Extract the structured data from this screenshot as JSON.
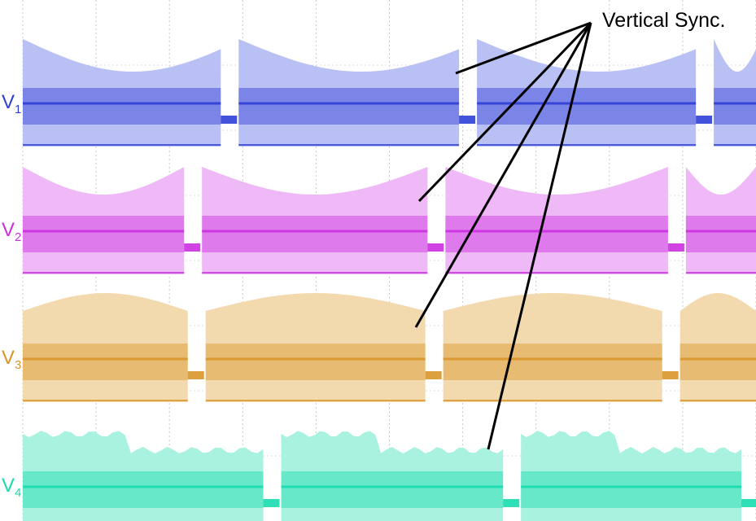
{
  "chart_data": {
    "type": "line",
    "title": "",
    "xlabel": "",
    "ylabel": "",
    "grid": true,
    "annotation": "Vertical Sync.",
    "series": [
      {
        "name": "V1",
        "letter": "V",
        "sub": "1",
        "color": "#2f3fd6",
        "light": "#b8c0f4",
        "sync": [
          0.27,
          0.595,
          0.918
        ]
      },
      {
        "name": "V2",
        "letter": "V",
        "sub": "2",
        "color": "#cc2fe0",
        "light": "#efb8f6",
        "sync": [
          0.22,
          0.552,
          0.88
        ]
      },
      {
        "name": "V3",
        "letter": "V",
        "sub": "3",
        "color": "#d9962a",
        "light": "#f3d9ae",
        "sync": [
          0.225,
          0.549,
          0.872
        ]
      },
      {
        "name": "V4",
        "letter": "V",
        "sub": "4",
        "color": "#18dcb0",
        "light": "#a8f2df",
        "sync": [
          0.328,
          0.655,
          0.98
        ]
      }
    ]
  }
}
